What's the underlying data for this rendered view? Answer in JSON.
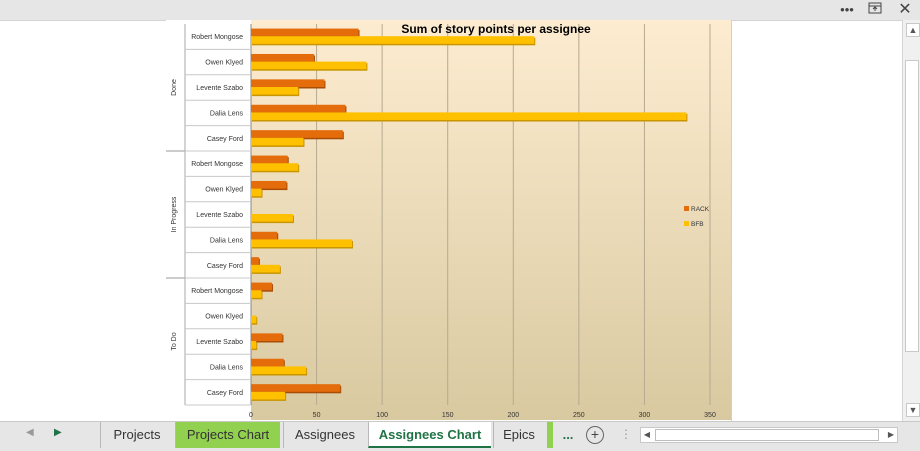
{
  "window": {
    "more_icon": "ellipsis-icon",
    "restore_icon": "restore-window-icon",
    "close_icon": "close-icon"
  },
  "tabs": [
    {
      "label": "Projects",
      "style": "plain"
    },
    {
      "label": "Projects Chart",
      "style": "green"
    },
    {
      "label": "Assignees",
      "style": "plain"
    },
    {
      "label": "Assignees Chart",
      "style": "active"
    },
    {
      "label": "Epics",
      "style": "plain"
    },
    {
      "label": "...",
      "style": "green"
    }
  ],
  "colors": {
    "rack": "#e46c0a",
    "bfb": "#ffc000",
    "plot_top": "#fdecd0",
    "plot_bottom": "#d9c9a0",
    "tab_green": "#92d050",
    "active_tab_text": "#217346"
  },
  "chart_data": {
    "type": "bar",
    "orientation": "horizontal",
    "title": "Sum of story points per assignee",
    "groups": [
      {
        "name": "Done",
        "categories": [
          "Robert Mongose",
          "Owen Klyed",
          "Levente Szabo",
          "Dalia Lens",
          "Casey Ford"
        ]
      },
      {
        "name": "In Progress",
        "categories": [
          "Robert Mongose",
          "Owen Klyed",
          "Levente Szabo",
          "Dalia Lens",
          "Casey Ford"
        ]
      },
      {
        "name": "To Do",
        "categories": [
          "Robert Mongose",
          "Owen Klyed",
          "Levente Szabo",
          "Dalia Lens",
          "Casey Ford"
        ]
      }
    ],
    "series": [
      {
        "name": "RACK",
        "color": "#e46c0a",
        "values": [
          82,
          48,
          56,
          72,
          70,
          28,
          27,
          0,
          20,
          6,
          16,
          0,
          24,
          25,
          68
        ]
      },
      {
        "name": "BFB",
        "color": "#ffc000",
        "values": [
          216,
          88,
          36,
          332,
          40,
          36,
          8,
          32,
          77,
          22,
          8,
          4,
          4,
          42,
          26
        ]
      }
    ],
    "xlim": [
      0,
      350
    ],
    "xticks": [
      0,
      50,
      100,
      150,
      200,
      250,
      300,
      350
    ],
    "grid": true,
    "legend_position": "right"
  }
}
